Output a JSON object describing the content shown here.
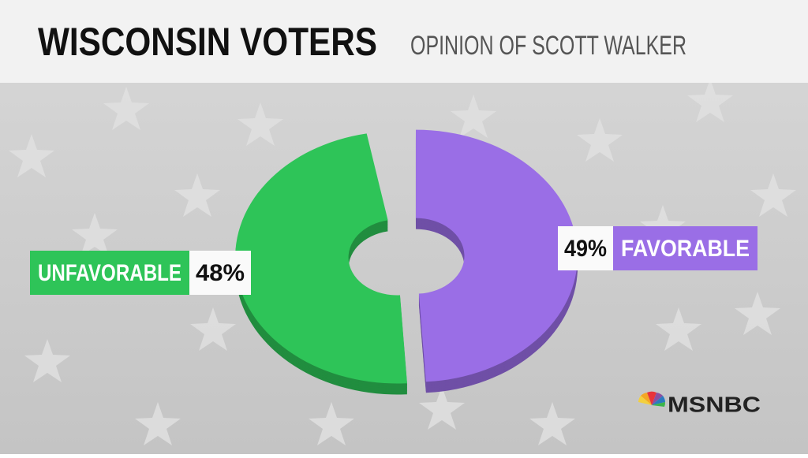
{
  "chart_data": {
    "type": "pie",
    "title": "WISCONSIN VOTERS",
    "subtitle": "OPINION OF SCOTT WALKER",
    "categories": [
      "UNFAVORABLE",
      "FAVORABLE"
    ],
    "values": [
      48,
      49
    ],
    "value_labels": [
      "48%",
      "49%"
    ],
    "colors": [
      "#2ec458",
      "#9a6ee6"
    ],
    "network": "MSNBC"
  }
}
